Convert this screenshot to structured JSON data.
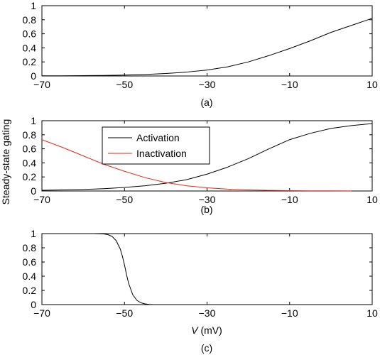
{
  "figure": {
    "ylabel": "Steady-state gating",
    "xlabel_var": "V",
    "xlabel_unit": " (mV)"
  },
  "chart_data": [
    {
      "type": "line",
      "panel_label": "(a)",
      "xlim": [
        -70,
        10
      ],
      "ylim": [
        0,
        1
      ],
      "xticks": [
        -70,
        -50,
        -30,
        -10,
        10
      ],
      "xtick_labels": [
        "−70",
        "−50",
        "−30",
        "−10",
        "10"
      ],
      "yticks": [
        0,
        0.2,
        0.4,
        0.6,
        0.8,
        1
      ],
      "ytick_labels": [
        "0",
        "0.2",
        "0.4",
        "0.6",
        "0.8",
        "1"
      ],
      "grid": false,
      "series": [
        {
          "color": "#000000",
          "x": [
            -70,
            -65,
            -60,
            -55,
            -50,
            -45,
            -40,
            -35,
            -30,
            -25,
            -20,
            -15,
            -10,
            -5,
            0,
            5,
            10
          ],
          "y": [
            0.002,
            0.003,
            0.005,
            0.008,
            0.013,
            0.022,
            0.035,
            0.055,
            0.085,
            0.13,
            0.2,
            0.29,
            0.39,
            0.5,
            0.62,
            0.72,
            0.82
          ]
        }
      ]
    },
    {
      "type": "line",
      "panel_label": "(b)",
      "xlim": [
        -70,
        10
      ],
      "ylim": [
        0,
        1
      ],
      "xticks": [
        -70,
        -50,
        -30,
        -10,
        10
      ],
      "xtick_labels": [
        "−70",
        "−50",
        "−30",
        "−10",
        "10"
      ],
      "yticks": [
        0,
        0.2,
        0.4,
        0.6,
        0.8,
        1
      ],
      "ytick_labels": [
        "0",
        "0.2",
        "0.4",
        "0.6",
        "0.8",
        "1"
      ],
      "grid": false,
      "legend_position": "upper-left",
      "series": [
        {
          "name": "Activation",
          "color": "#000000",
          "x": [
            -70,
            -65,
            -60,
            -55,
            -50,
            -45,
            -40,
            -35,
            -30,
            -25,
            -20,
            -15,
            -10,
            -5,
            0,
            5,
            10
          ],
          "y": [
            0.01,
            0.015,
            0.022,
            0.033,
            0.05,
            0.075,
            0.11,
            0.16,
            0.24,
            0.34,
            0.46,
            0.6,
            0.73,
            0.82,
            0.89,
            0.93,
            0.96
          ]
        },
        {
          "name": "Inactivation",
          "color": "#e8251e",
          "x": [
            -70,
            -65,
            -60,
            -55,
            -50,
            -45,
            -40,
            -35,
            -30,
            -25,
            -20,
            -15,
            -10,
            -5,
            0,
            5
          ],
          "y": [
            0.73,
            0.62,
            0.5,
            0.38,
            0.28,
            0.19,
            0.12,
            0.075,
            0.045,
            0.026,
            0.015,
            0.009,
            0.005,
            0.003,
            0.002,
            0.001
          ]
        }
      ]
    },
    {
      "type": "line",
      "panel_label": "(c)",
      "xlim": [
        -70,
        10
      ],
      "ylim": [
        0,
        1
      ],
      "xticks": [
        -70,
        -50,
        -30,
        -10,
        10
      ],
      "xtick_labels": [
        "−70",
        "−50",
        "−30",
        "−10",
        "10"
      ],
      "yticks": [
        0,
        0.2,
        0.4,
        0.6,
        0.8,
        1
      ],
      "ytick_labels": [
        "0",
        "0.2",
        "0.4",
        "0.6",
        "0.8",
        "1"
      ],
      "grid": false,
      "series": [
        {
          "color": "#000000",
          "x": [
            -57.5,
            -55,
            -54,
            -53,
            -52,
            -51,
            -50.5,
            -50,
            -49.5,
            -49,
            -48,
            -47,
            -46,
            -45,
            -44,
            -43
          ],
          "y": [
            1,
            0.995,
            0.985,
            0.96,
            0.9,
            0.78,
            0.68,
            0.56,
            0.42,
            0.3,
            0.14,
            0.06,
            0.025,
            0.01,
            0.003,
            0
          ]
        }
      ]
    }
  ]
}
